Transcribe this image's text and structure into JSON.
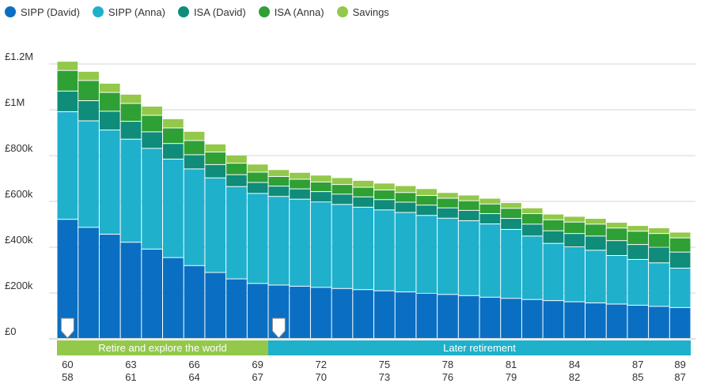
{
  "colors": {
    "sipp_david": "#0a6fc2",
    "sipp_anna": "#1fb0cc",
    "isa_david": "#0f8c7a",
    "isa_anna": "#2ea034",
    "savings": "#93c84a",
    "phase_1": "#93c84a",
    "phase_2": "#1fb0cc"
  },
  "chart_data": {
    "type": "bar",
    "stacked": true,
    "legend_placement": "top-left",
    "title": "",
    "xlabel": "",
    "ylabel": "",
    "ylim": [
      0,
      1200000
    ],
    "y_ticks": [
      {
        "value": 0,
        "label": "£0"
      },
      {
        "value": 200000,
        "label": "£200k"
      },
      {
        "value": 400000,
        "label": "£400k"
      },
      {
        "value": 600000,
        "label": "£600k"
      },
      {
        "value": 800000,
        "label": "£800k"
      },
      {
        "value": 1000000,
        "label": "£1M"
      },
      {
        "value": 1200000,
        "label": "£1.2M"
      }
    ],
    "ages_a": [
      "60",
      "61",
      "62",
      "63",
      "64",
      "65",
      "66",
      "67",
      "68",
      "69",
      "70",
      "71",
      "72",
      "73",
      "74",
      "75",
      "76",
      "77",
      "78",
      "79",
      "80",
      "81",
      "82",
      "83",
      "84",
      "85",
      "86",
      "87",
      "88",
      "89"
    ],
    "ages_b": [
      "58",
      "59",
      "60",
      "61",
      "62",
      "63",
      "64",
      "65",
      "66",
      "67",
      "68",
      "69",
      "70",
      "71",
      "72",
      "73",
      "74",
      "75",
      "76",
      "77",
      "78",
      "79",
      "80",
      "81",
      "82",
      "83",
      "84",
      "85",
      "86",
      "87"
    ],
    "x_tick_labels": [
      {
        "index": 0,
        "top": "60",
        "bottom": "58"
      },
      {
        "index": 3,
        "top": "63",
        "bottom": "61"
      },
      {
        "index": 6,
        "top": "66",
        "bottom": "64"
      },
      {
        "index": 9,
        "top": "69",
        "bottom": "67"
      },
      {
        "index": 12,
        "top": "72",
        "bottom": "70"
      },
      {
        "index": 15,
        "top": "75",
        "bottom": "73"
      },
      {
        "index": 18,
        "top": "78",
        "bottom": "76"
      },
      {
        "index": 21,
        "top": "81",
        "bottom": "79"
      },
      {
        "index": 24,
        "top": "84",
        "bottom": "82"
      },
      {
        "index": 27,
        "top": "87",
        "bottom": "85"
      },
      {
        "index": 29,
        "top": "89",
        "bottom": "87"
      }
    ],
    "series": [
      {
        "name": "SIPP (David)",
        "color": "#0a6fc2",
        "values": [
          520000,
          485000,
          455000,
          420000,
          390000,
          353000,
          318000,
          288000,
          260000,
          240000,
          233000,
          228000,
          223000,
          218000,
          213000,
          208000,
          203000,
          197000,
          192000,
          187000,
          180000,
          175000,
          170000,
          165000,
          160000,
          155000,
          150000,
          145000,
          140000,
          135000
        ]
      },
      {
        "name": "SIPP (Anna)",
        "color": "#1fb0cc",
        "values": [
          470000,
          465000,
          455000,
          450000,
          440000,
          430000,
          422000,
          413000,
          403000,
          393000,
          387000,
          380000,
          373000,
          367000,
          360000,
          353000,
          347000,
          340000,
          333000,
          327000,
          320000,
          301000,
          277000,
          250000,
          240000,
          230000,
          212000,
          200000,
          190000,
          172000
        ]
      },
      {
        "name": "ISA (David)",
        "color": "#0f8c7a",
        "values": [
          90000,
          88000,
          82000,
          78000,
          72000,
          68000,
          62000,
          58000,
          52000,
          48000,
          45000,
          45000,
          45000,
          45000,
          45000,
          45000,
          45000,
          45000,
          45000,
          45000,
          45000,
          48000,
          52000,
          55000,
          58000,
          62000,
          65000,
          65000,
          68000,
          70000
        ]
      },
      {
        "name": "ISA (Anna)",
        "color": "#2ea034",
        "values": [
          90000,
          88000,
          82000,
          78000,
          72000,
          68000,
          62000,
          55000,
          50000,
          45000,
          42000,
          42000,
          42000,
          42000,
          42000,
          42000,
          42000,
          42000,
          42000,
          42000,
          42000,
          44000,
          46000,
          48000,
          50000,
          52000,
          55000,
          58000,
          60000,
          62000
        ]
      },
      {
        "name": "Savings",
        "color": "#93c84a",
        "values": [
          40000,
          40000,
          40000,
          40000,
          40000,
          40000,
          40000,
          35000,
          35000,
          35000,
          30000,
          30000,
          30000,
          30000,
          30000,
          30000,
          30000,
          30000,
          25000,
          25000,
          25000,
          25000,
          25000,
          25000,
          25000,
          25000,
          25000,
          25000,
          25000,
          25000
        ]
      }
    ],
    "markers": [
      0,
      10
    ],
    "phases": [
      {
        "label": "Retire and explore the world",
        "start_index": 0,
        "end_index": 9,
        "color": "#93c84a"
      },
      {
        "label": "Later retirement",
        "start_index": 10,
        "end_index": 29,
        "color": "#1fb0cc"
      }
    ]
  }
}
